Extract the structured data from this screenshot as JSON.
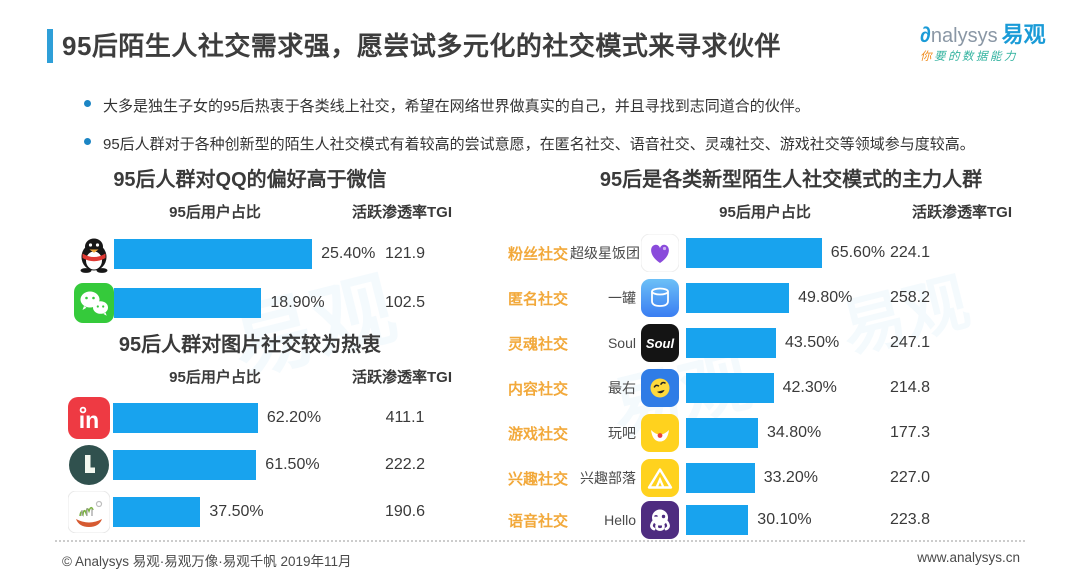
{
  "branding": {
    "brand_head": "∂",
    "brand_tail": "nalysys",
    "brand_cn": "易观",
    "tagline_first": "你",
    "tagline_rest": "要的数据能力",
    "watermark": "易观"
  },
  "header": {
    "title": "95后陌生人社交需求强，愿尝试多元化的社交模式来寻求伙伴"
  },
  "bullets": [
    "大多是独生子女的95后热衷于各类线上社交，希望在网络世界做真实的自己，并且寻找到志同道合的伙伴。",
    "95后人群对于各种创新型的陌生人社交模式有着较高的尝试意愿，在匿名社交、语音社交、灵魂社交、游戏社交等领域参与度较高。"
  ],
  "colors": {
    "bar_blue": "#18a3ee",
    "accent_blue": "#2e9fd8",
    "category_orange": "#f2a93b",
    "bullet_blue": "#1c85c4"
  },
  "chart_data": [
    {
      "type": "bar",
      "title": "95后人群对QQ的偏好高于微信",
      "col_share": "95后用户占比",
      "col_tgi": "活跃渗透率TGI",
      "value_unit": "%",
      "rows": [
        {
          "icon": "qq-icon",
          "share_pct": 25.4,
          "share_label": "25.40%",
          "tgi": "121.9"
        },
        {
          "icon": "wechat-icon",
          "share_pct": 18.9,
          "share_label": "18.90%",
          "tgi": "102.5"
        }
      ]
    },
    {
      "type": "bar",
      "title": "95后人群对图片社交较为热衷",
      "col_share": "95后用户占比",
      "col_tgi": "活跃渗透率TGI",
      "value_unit": "%",
      "rows": [
        {
          "icon": "in-app-icon",
          "share_pct": 62.2,
          "share_label": "62.20%",
          "tgi": "411.1"
        },
        {
          "icon": "lofter-icon",
          "share_pct": 61.5,
          "share_label": "61.50%",
          "tgi": "222.2"
        },
        {
          "icon": "sketch-landscape-icon",
          "share_pct": 37.5,
          "share_label": "37.50%",
          "tgi": "190.6"
        }
      ]
    },
    {
      "type": "bar",
      "title": "95后是各类新型陌生人社交模式的主力人群",
      "col_share": "95后用户占比",
      "col_tgi": "活跃渗透率TGI",
      "value_unit": "%",
      "rows": [
        {
          "category": "粉丝社交",
          "app": "超级星饭团",
          "icon": "purple-heart-icon",
          "share_pct": 65.6,
          "share_label": "65.60%",
          "tgi": "224.1"
        },
        {
          "category": "匿名社交",
          "app": "一罐",
          "icon": "jar-icon",
          "share_pct": 49.8,
          "share_label": "49.80%",
          "tgi": "258.2"
        },
        {
          "category": "灵魂社交",
          "app": "Soul",
          "icon": "soul-app-icon",
          "share_pct": 43.5,
          "share_label": "43.50%",
          "tgi": "247.1"
        },
        {
          "category": "内容社交",
          "app": "最右",
          "icon": "laughing-face-icon",
          "share_pct": 42.3,
          "share_label": "42.30%",
          "tgi": "214.8"
        },
        {
          "category": "游戏社交",
          "app": "玩吧",
          "icon": "smile-bowl-icon",
          "share_pct": 34.8,
          "share_label": "34.80%",
          "tgi": "177.3"
        },
        {
          "category": "兴趣社交",
          "app": "兴趣部落",
          "icon": "tent-icon",
          "share_pct": 33.2,
          "share_label": "33.20%",
          "tgi": "227.0"
        },
        {
          "category": "语音社交",
          "app": "Hello",
          "icon": "octopus-icon",
          "share_pct": 30.1,
          "share_label": "30.10%",
          "tgi": "223.8"
        }
      ]
    }
  ],
  "footer": {
    "copyright": "© Analysys 易观·易观万像·易观千帆 2019年11月",
    "website": "www.analysys.cn"
  }
}
